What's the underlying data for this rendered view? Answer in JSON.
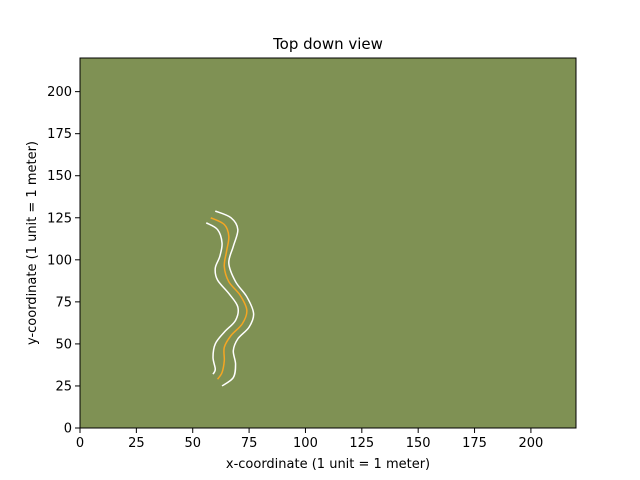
{
  "chart_data": {
    "type": "line",
    "title": "Top down view",
    "xlabel": "x-coordinate (1 unit = 1 meter)",
    "ylabel": "y-coordinate (1 unit = 1 meter)",
    "xlim": [
      0,
      220
    ],
    "ylim": [
      0,
      220
    ],
    "xticks": [
      0,
      25,
      50,
      75,
      100,
      125,
      150,
      175,
      200
    ],
    "yticks": [
      0,
      25,
      50,
      75,
      100,
      125,
      150,
      175,
      200
    ],
    "grid": false,
    "legend": "none",
    "background_color": "#7f9154",
    "series": [
      {
        "role": "left-edge",
        "color": "#ffffff",
        "x": [
          56,
          61,
          63,
          62,
          60,
          61,
          66,
          70,
          69,
          64,
          60,
          59,
          60,
          59
        ],
        "y": [
          122,
          118,
          110,
          102,
          95,
          88,
          80,
          72,
          64,
          57,
          50,
          42,
          35,
          32
        ]
      },
      {
        "role": "center-line",
        "color": "#f5a623",
        "x": [
          58,
          64,
          66,
          65,
          64,
          66,
          71,
          74,
          72,
          67,
          64,
          64,
          63,
          61
        ],
        "y": [
          125,
          121,
          114,
          105,
          96,
          87,
          79,
          70,
          62,
          55,
          48,
          40,
          33,
          29
        ]
      },
      {
        "role": "right-edge",
        "color": "#ffffff",
        "x": [
          60,
          67,
          70,
          68,
          66,
          69,
          74,
          77,
          75,
          70,
          68,
          69,
          68,
          63
        ],
        "y": [
          129,
          125,
          118,
          108,
          98,
          87,
          78,
          68,
          60,
          53,
          46,
          38,
          30,
          25
        ]
      }
    ]
  }
}
